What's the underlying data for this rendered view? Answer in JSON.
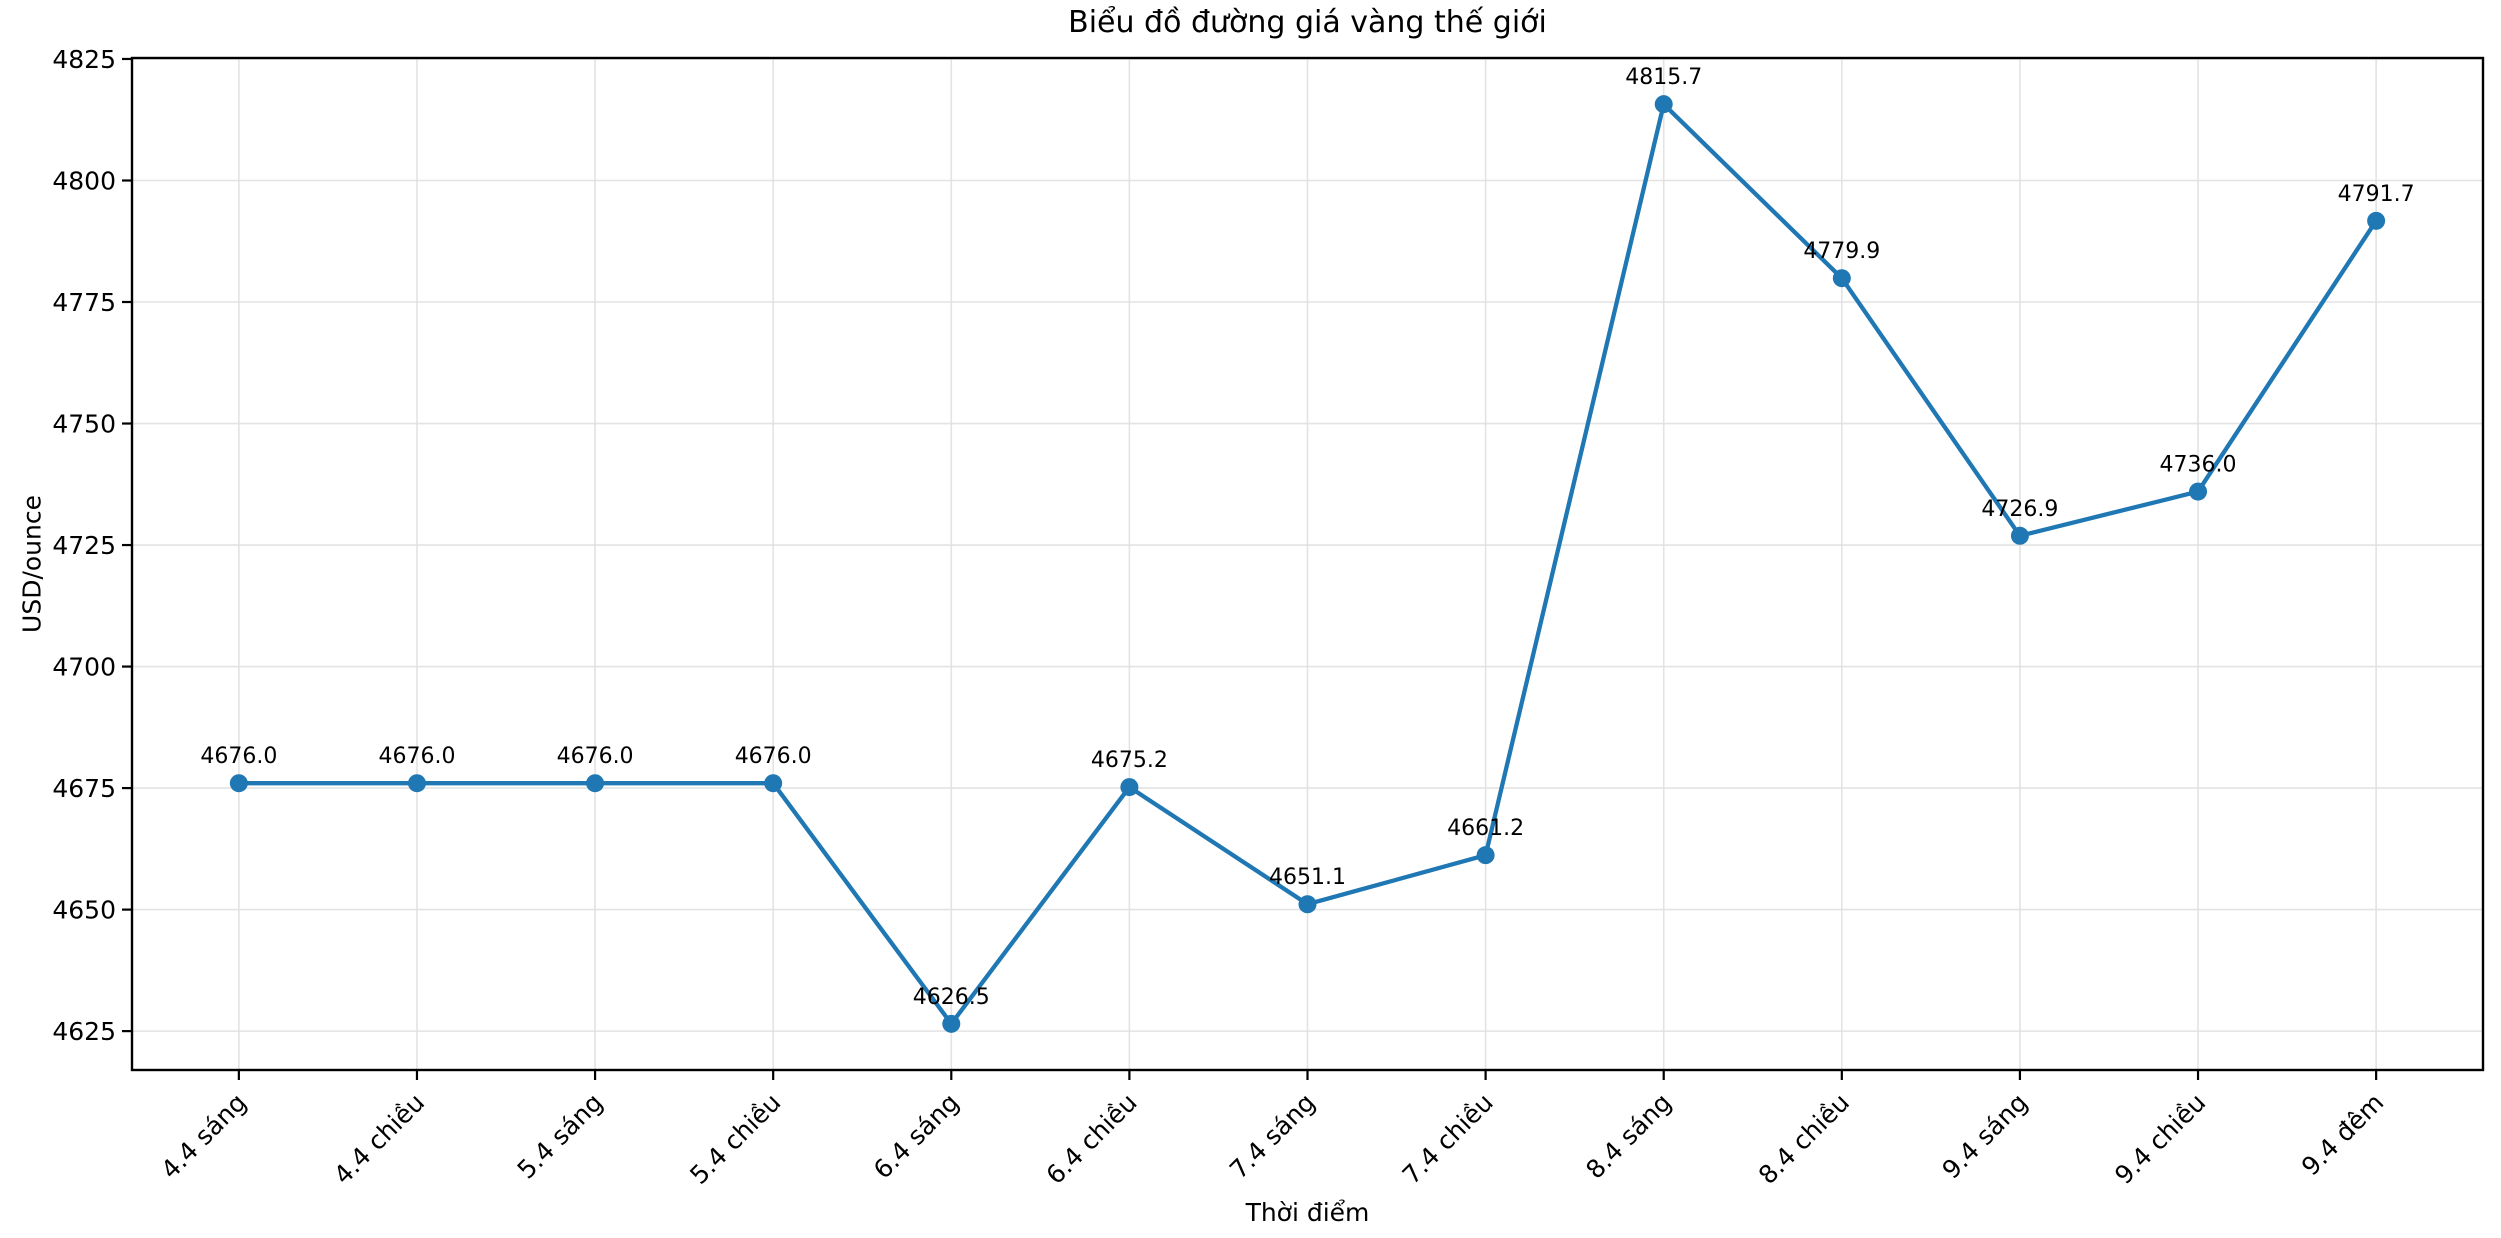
{
  "chart_data": {
    "type": "line",
    "title": "Biểu đồ đường giá vàng thế giới",
    "xlabel": "Thời điểm",
    "ylabel": "USD/ounce",
    "categories": [
      "4.4 sáng",
      "4.4 chiều",
      "5.4 sáng",
      "5.4 chiều",
      "6.4 sáng",
      "6.4 chiều",
      "7.4 sáng",
      "7.4 chiều",
      "8.4 sáng",
      "8.4 chiều",
      "9.4 sáng",
      "9.4 chiều",
      "9.4 đêm"
    ],
    "series": [
      {
        "values": [
          4676.0,
          4676.0,
          4676.0,
          4676.0,
          4626.5,
          4675.2,
          4651.1,
          4661.2,
          4815.7,
          4779.9,
          4726.9,
          4736.0,
          4791.7
        ]
      }
    ],
    "point_labels": [
      "4676.0",
      "4676.0",
      "4676.0",
      "4676.0",
      "4626.5",
      "4675.2",
      "4651.1",
      "4661.2",
      "4815.7",
      "4779.9",
      "4726.9",
      "4736.0",
      "4791.7"
    ],
    "yticks": [
      4625,
      4650,
      4675,
      4700,
      4725,
      4750,
      4775,
      4800,
      4825
    ],
    "ylim": [
      4617.0,
      4825.2
    ],
    "grid": true,
    "legend_position": "none",
    "line_color": "#1f77b4",
    "marker": "circle",
    "grid_color": "#e0e0e0",
    "spine_color": "#000000",
    "text_color": "#000000",
    "background": "#ffffff"
  }
}
